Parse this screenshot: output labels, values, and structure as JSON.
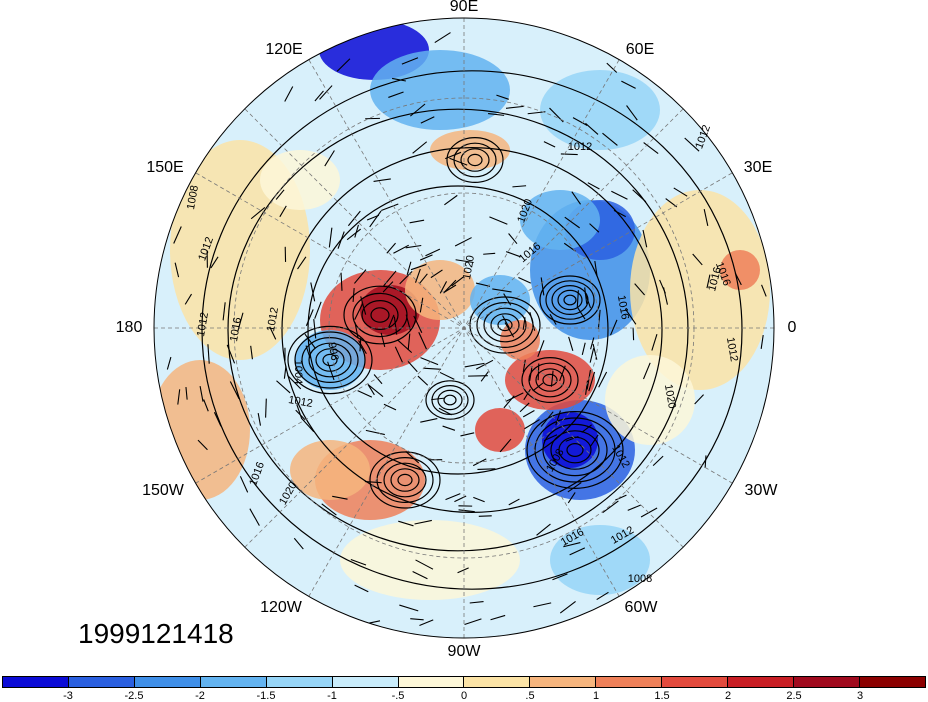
{
  "map": {
    "projection": "north-polar-stereographic",
    "lon_labels": [
      "90E",
      "120E",
      "60E",
      "150E",
      "30E",
      "180",
      "0",
      "150W",
      "30W",
      "120W",
      "60W",
      "90W"
    ],
    "contour_labels": [
      "1012",
      "1008",
      "1012",
      "1016",
      "1012",
      "1012",
      "1016",
      "1020",
      "1016",
      "1020",
      "996",
      "1004",
      "1012",
      "1016",
      "1020",
      "1012",
      "1016",
      "1012",
      "1008",
      "1016",
      "1012",
      "1008",
      "1012",
      "1016",
      "1020"
    ],
    "timestamp": "1999121418"
  },
  "colorbar": {
    "colors": [
      "#0b0bd6",
      "#2a5fe0",
      "#3f8fe8",
      "#63b3f0",
      "#97d5f7",
      "#c9ecfb",
      "#fdf7d8",
      "#fbe3a6",
      "#f6b57e",
      "#ee8059",
      "#e24a3d",
      "#c81e24",
      "#a00a1e",
      "#8b0000"
    ],
    "tick_labels": [
      "-3",
      "-2.5",
      "-2",
      "-1.5",
      "-1",
      "-.5",
      "0",
      ".5",
      "1",
      "1.5",
      "2",
      "2.5",
      "3"
    ]
  }
}
